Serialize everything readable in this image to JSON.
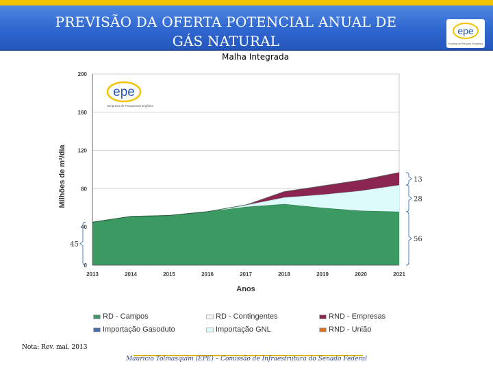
{
  "slide": {
    "title": "PREVISÃO DA OFERTA POTENCIAL ANUAL DE\nGÁS NATURAL",
    "subtitle": "Malha Integrada",
    "note": "Nota: Rev. mai. 2013",
    "footer": "Mauricio Tolmasquim (EPE) – Comissão de Infraestrutura do Senado Federal",
    "logo_text": "epe",
    "logo_tagline": "Empresa de Pesquisa Energética"
  },
  "chart_data": {
    "type": "area",
    "xlabel": "Anos",
    "ylabel": "Milhões de m³/dia",
    "x": [
      2013,
      2014,
      2015,
      2016,
      2017,
      2018,
      2019,
      2020,
      2021
    ],
    "ylim": [
      0,
      200
    ],
    "yticks": [
      0,
      40,
      80,
      120,
      160,
      200
    ],
    "stacked": true,
    "series": [
      {
        "name": "RD - Campos",
        "color": "#3b9a62",
        "values": [
          45,
          51,
          52,
          56,
          61,
          64,
          60,
          57,
          56
        ]
      },
      {
        "name": "Importação GNL",
        "color": "#ddfbfa",
        "values": [
          0,
          0,
          0,
          0,
          2,
          7,
          14,
          21,
          28
        ]
      },
      {
        "name": "RND - Empresas",
        "color": "#8b2652",
        "values": [
          0,
          0,
          0,
          0,
          0,
          6,
          9,
          11,
          13
        ]
      }
    ],
    "annotations": [
      {
        "label": "13",
        "side": "right",
        "target": "RND - Empresas"
      },
      {
        "label": "28",
        "side": "right",
        "target": "Importação GNL"
      },
      {
        "label": "56",
        "side": "right",
        "target": "RD - Campos"
      },
      {
        "label": "45",
        "side": "left",
        "target": "RD - Campos"
      }
    ],
    "legend": {
      "placement": "bottom",
      "entries": [
        {
          "label": "RD - Campos",
          "color": "#3b9a62"
        },
        {
          "label": "RD - Contingentes",
          "color": "#f3f3f3"
        },
        {
          "label": "RND - Empresas",
          "color": "#8b2652"
        },
        {
          "label": "Importação Gasoduto",
          "color": "#3f6db0"
        },
        {
          "label": "Importação GNL",
          "color": "#ddfbfa"
        },
        {
          "label": "RND - União",
          "color": "#d9701f"
        }
      ]
    },
    "watermark": {
      "logo_text": "epe",
      "tagline": "Empresa de Pesquisa Energética"
    }
  }
}
